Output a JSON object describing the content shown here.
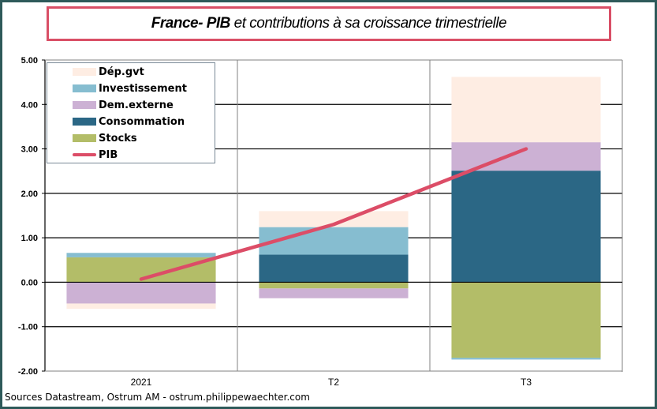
{
  "title": {
    "country": "France- PIB",
    "rest": " et contributions à sa croissance trimestrielle"
  },
  "source": "Sources Datastream, Ostrum AM - ostrum.philippewaechter.com",
  "chart_data": {
    "type": "bar",
    "stacked": true,
    "title": "France- PIB et contributions à sa croissance trimestrielle",
    "categories": [
      "2021",
      "T2",
      "T3"
    ],
    "ylim": [
      -2,
      5
    ],
    "yticks": [
      "5.00",
      "4.00",
      "3.00",
      "2.00",
      "1.00",
      "0.00",
      "-1.00",
      "-2.00"
    ],
    "ytick_values": [
      5,
      4,
      3,
      2,
      1,
      0,
      -1,
      -2
    ],
    "grid": true,
    "legend_position": "top-left",
    "series": [
      {
        "name": "Stocks",
        "color": "#b3bd68",
        "values": [
          0.56,
          -0.14,
          -1.7
        ]
      },
      {
        "name": "Consommation",
        "color": "#2b6785",
        "values": [
          0.0,
          0.62,
          2.51
        ]
      },
      {
        "name": "Dem.externe",
        "color": "#ccb1d4",
        "values": [
          -0.48,
          -0.22,
          0.64
        ]
      },
      {
        "name": "Investissement",
        "color": "#86bdd0",
        "values": [
          0.1,
          0.62,
          -0.04
        ]
      },
      {
        "name": "Dép.gvt",
        "color": "#feede3",
        "values": [
          -0.12,
          0.36,
          1.47
        ]
      }
    ],
    "line": {
      "name": "PIB",
      "color": "#dc4d67",
      "values": [
        0.07,
        1.3,
        3.0
      ]
    },
    "legend": [
      "Dép.gvt",
      "Investissement",
      "Dem.externe",
      "Consommation",
      "Stocks",
      "PIB"
    ]
  }
}
